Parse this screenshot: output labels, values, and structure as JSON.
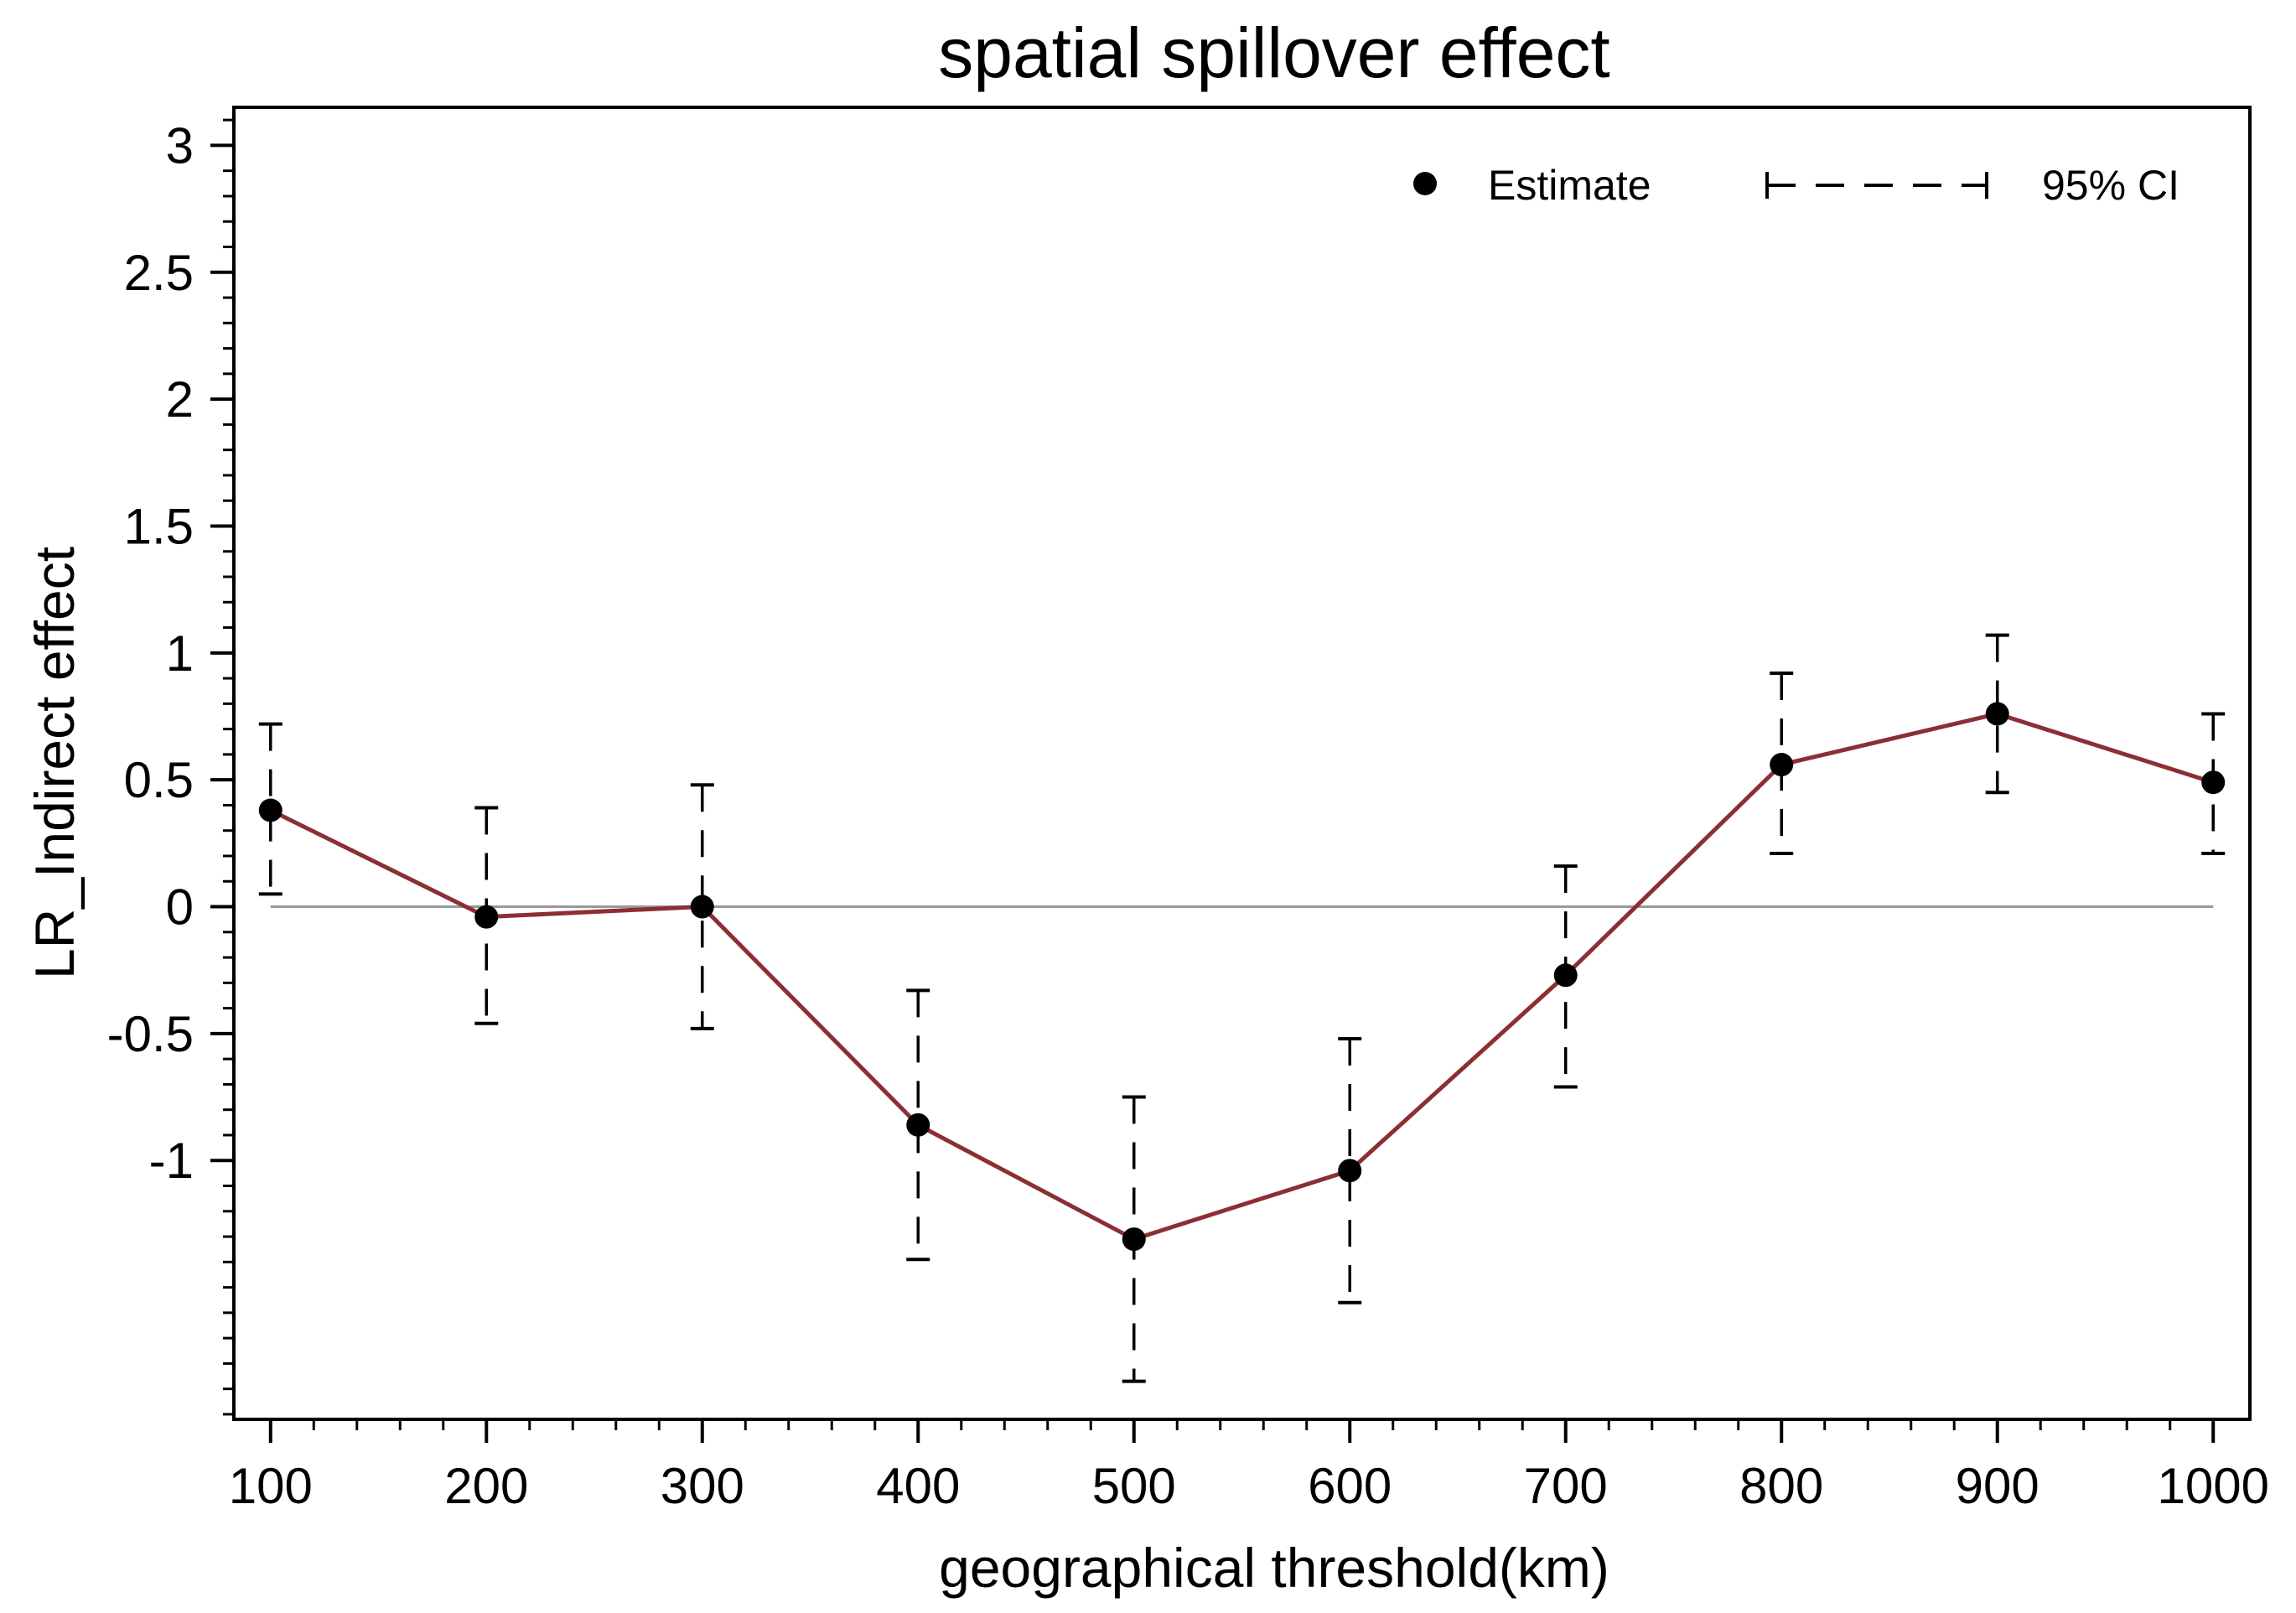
{
  "chart_data": {
    "type": "line",
    "title": "spatial spillover effect",
    "xlabel": "geographical threshold(km)",
    "ylabel": "LR_Indirect effect",
    "x": [
      100,
      200,
      300,
      400,
      500,
      600,
      700,
      800,
      900,
      1000
    ],
    "xticks": [
      "100",
      "200",
      "300",
      "400",
      "500",
      "600",
      "700",
      "800",
      "900",
      "1000"
    ],
    "yticks": [
      "3",
      "2.5",
      "2",
      "1.5",
      "1",
      "0.5",
      "0",
      "-0.5",
      "-1"
    ],
    "xlim": [
      83,
      1017
    ],
    "ylim": [
      -2.02,
      3.15
    ],
    "series": [
      {
        "name": "Estimate",
        "values": [
          0.38,
          -0.04,
          0.0,
          -0.86,
          -1.31,
          -1.04,
          -0.27,
          0.56,
          0.76,
          0.49
        ],
        "ci_lower": [
          0.05,
          -0.46,
          -0.48,
          -1.39,
          -1.87,
          -1.56,
          -0.71,
          0.21,
          0.45,
          0.21
        ],
        "ci_upper": [
          0.72,
          0.39,
          0.48,
          -0.33,
          -0.75,
          -0.52,
          0.16,
          0.92,
          1.07,
          0.76
        ]
      }
    ],
    "reference_line": 0,
    "legend": {
      "estimate": "Estimate",
      "ci": "95% CI",
      "position": "top-right"
    },
    "colors": {
      "line": "#8b2f35",
      "markers": "#000000",
      "reference": "#999999"
    }
  }
}
